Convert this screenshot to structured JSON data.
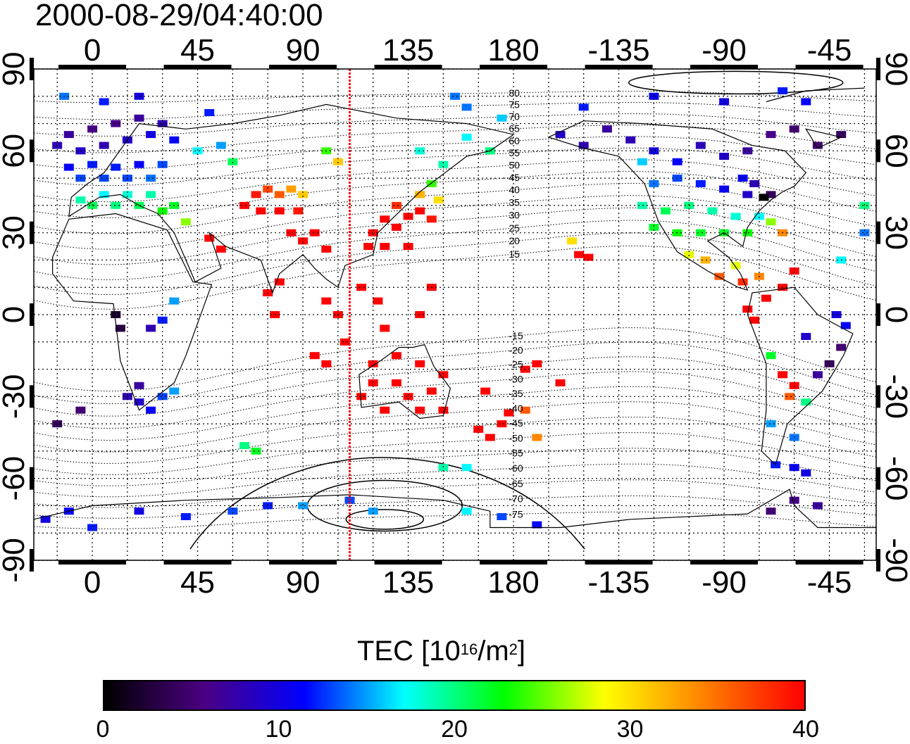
{
  "title": "2000-08-29/04:40:00",
  "map": {
    "top_lon_labels": [
      "0",
      "45",
      "90",
      "135",
      "180",
      "-135",
      "-90",
      "-45"
    ],
    "bottom_lon_labels": [
      "0",
      "45",
      "90",
      "135",
      "180",
      "-135",
      "-90",
      "-45"
    ],
    "left_lat_labels": [
      "90",
      "60",
      "30",
      "0",
      "-30",
      "-60",
      "-90"
    ],
    "right_lat_labels": [
      "90",
      "60",
      "30",
      "0",
      "-30",
      "-60",
      "-90"
    ],
    "lon_ticks": [
      0,
      45,
      90,
      135,
      180,
      -135,
      -90,
      -45
    ],
    "lat_ticks": [
      90,
      60,
      30,
      0,
      -30,
      -60,
      -90
    ],
    "lon_range": [
      -25,
      335
    ],
    "lat_range": [
      -90,
      90
    ],
    "meridian_marker_lon": 110,
    "marker_color": "#ff0000",
    "contour_labels": [
      "80",
      "75",
      "70",
      "65",
      "60",
      "55",
      "50",
      "45",
      "40",
      "35",
      "30",
      "25",
      "20",
      "15",
      "-15",
      "-20",
      "-25",
      "-30",
      "-35",
      "-40",
      "-45",
      "-50",
      "-55",
      "-60",
      "-65",
      "-70",
      "-75"
    ],
    "tec_cells": [
      {
        "lon": -15,
        "lat": 62,
        "tec": 8
      },
      {
        "lon": -10,
        "lat": 66,
        "tec": 7
      },
      {
        "lon": -5,
        "lat": 60,
        "tec": 9
      },
      {
        "lon": 0,
        "lat": 68,
        "tec": 6
      },
      {
        "lon": 5,
        "lat": 62,
        "tec": 8
      },
      {
        "lon": 10,
        "lat": 70,
        "tec": 6
      },
      {
        "lon": 15,
        "lat": 64,
        "tec": 9
      },
      {
        "lon": 20,
        "lat": 72,
        "tec": 7
      },
      {
        "lon": 25,
        "lat": 66,
        "tec": 10
      },
      {
        "lon": 30,
        "lat": 70,
        "tec": 8
      },
      {
        "lon": 35,
        "lat": 64,
        "tec": 11
      },
      {
        "lon": -10,
        "lat": 54,
        "tec": 11
      },
      {
        "lon": -5,
        "lat": 50,
        "tec": 13
      },
      {
        "lon": 0,
        "lat": 55,
        "tec": 12
      },
      {
        "lon": 5,
        "lat": 50,
        "tec": 13
      },
      {
        "lon": 10,
        "lat": 54,
        "tec": 12
      },
      {
        "lon": 15,
        "lat": 50,
        "tec": 13
      },
      {
        "lon": 20,
        "lat": 55,
        "tec": 11
      },
      {
        "lon": 25,
        "lat": 50,
        "tec": 14
      },
      {
        "lon": 30,
        "lat": 55,
        "tec": 13
      },
      {
        "lon": -5,
        "lat": 42,
        "tec": 19
      },
      {
        "lon": 0,
        "lat": 40,
        "tec": 21
      },
      {
        "lon": 5,
        "lat": 44,
        "tec": 17
      },
      {
        "lon": 10,
        "lat": 40,
        "tec": 20
      },
      {
        "lon": 15,
        "lat": 44,
        "tec": 18
      },
      {
        "lon": 20,
        "lat": 40,
        "tec": 21
      },
      {
        "lon": 25,
        "lat": 44,
        "tec": 19
      },
      {
        "lon": 30,
        "lat": 38,
        "tec": 23
      },
      {
        "lon": 35,
        "lat": 40,
        "tec": 22
      },
      {
        "lon": 40,
        "lat": 34,
        "tec": 26
      },
      {
        "lon": -12,
        "lat": 80,
        "tec": 14
      },
      {
        "lon": 5,
        "lat": 78,
        "tec": 12
      },
      {
        "lon": 20,
        "lat": 80,
        "tec": 10
      },
      {
        "lon": 45,
        "lat": 60,
        "tec": 17
      },
      {
        "lon": 55,
        "lat": 62,
        "tec": 15
      },
      {
        "lon": 60,
        "lat": 56,
        "tec": 21
      },
      {
        "lon": 50,
        "lat": 74,
        "tec": 12
      },
      {
        "lon": 100,
        "lat": 60,
        "tec": 24
      },
      {
        "lon": 105,
        "lat": 56,
        "tec": 31
      },
      {
        "lon": 70,
        "lat": 44,
        "tec": 39
      },
      {
        "lon": 75,
        "lat": 46,
        "tec": 37
      },
      {
        "lon": 80,
        "lat": 44,
        "tec": 36
      },
      {
        "lon": 85,
        "lat": 46,
        "tec": 33
      },
      {
        "lon": 90,
        "lat": 44,
        "tec": 31
      },
      {
        "lon": 65,
        "lat": 40,
        "tec": 40
      },
      {
        "lon": 72,
        "lat": 38,
        "tec": 40
      },
      {
        "lon": 80,
        "lat": 38,
        "tec": 40
      },
      {
        "lon": 88,
        "lat": 38,
        "tec": 39
      },
      {
        "lon": 85,
        "lat": 30,
        "tec": 40
      },
      {
        "lon": 90,
        "lat": 27,
        "tec": 40
      },
      {
        "lon": 95,
        "lat": 30,
        "tec": 40
      },
      {
        "lon": 100,
        "lat": 24,
        "tec": 40
      },
      {
        "lon": 50,
        "lat": 28,
        "tec": 40
      },
      {
        "lon": 55,
        "lat": 24,
        "tec": 40
      },
      {
        "lon": 75,
        "lat": 8,
        "tec": 40
      },
      {
        "lon": 80,
        "lat": 12,
        "tec": 40
      },
      {
        "lon": 78,
        "lat": 0,
        "tec": 40
      },
      {
        "lon": 95,
        "lat": -15,
        "tec": 40
      },
      {
        "lon": 100,
        "lat": -18,
        "tec": 40
      },
      {
        "lon": 100,
        "lat": 5,
        "tec": 40
      },
      {
        "lon": 105,
        "lat": 0,
        "tec": 40
      },
      {
        "lon": 108,
        "lat": -10,
        "tec": 40
      },
      {
        "lon": 120,
        "lat": 30,
        "tec": 40
      },
      {
        "lon": 125,
        "lat": 35,
        "tec": 40
      },
      {
        "lon": 130,
        "lat": 32,
        "tec": 40
      },
      {
        "lon": 135,
        "lat": 36,
        "tec": 40
      },
      {
        "lon": 140,
        "lat": 38,
        "tec": 40
      },
      {
        "lon": 145,
        "lat": 35,
        "tec": 39
      },
      {
        "lon": 130,
        "lat": 40,
        "tec": 38
      },
      {
        "lon": 140,
        "lat": 44,
        "tec": 32
      },
      {
        "lon": 145,
        "lat": 48,
        "tec": 24
      },
      {
        "lon": 148,
        "lat": 42,
        "tec": 30
      },
      {
        "lon": 118,
        "lat": 25,
        "tec": 40
      },
      {
        "lon": 125,
        "lat": 25,
        "tec": 40
      },
      {
        "lon": 135,
        "lat": 25,
        "tec": 40
      },
      {
        "lon": 115,
        "lat": 10,
        "tec": 40
      },
      {
        "lon": 122,
        "lat": 5,
        "tec": 40
      },
      {
        "lon": 125,
        "lat": -5,
        "tec": 40
      },
      {
        "lon": 140,
        "lat": 0,
        "tec": 40
      },
      {
        "lon": 145,
        "lat": 10,
        "tec": 40
      },
      {
        "lon": 140,
        "lat": 60,
        "tec": 18
      },
      {
        "lon": 150,
        "lat": 55,
        "tec": 19
      },
      {
        "lon": 160,
        "lat": 65,
        "tec": 17
      },
      {
        "lon": 170,
        "lat": 60,
        "tec": 20
      },
      {
        "lon": 155,
        "lat": 80,
        "tec": 14
      },
      {
        "lon": 175,
        "lat": 72,
        "tec": 16
      },
      {
        "lon": 160,
        "lat": 76,
        "tec": 14
      },
      {
        "lon": 120,
        "lat": -25,
        "tec": 40
      },
      {
        "lon": 115,
        "lat": -30,
        "tec": 40
      },
      {
        "lon": 125,
        "lat": -35,
        "tec": 40
      },
      {
        "lon": 130,
        "lat": -25,
        "tec": 40
      },
      {
        "lon": 135,
        "lat": -30,
        "tec": 40
      },
      {
        "lon": 140,
        "lat": -35,
        "tec": 40
      },
      {
        "lon": 145,
        "lat": -28,
        "tec": 40
      },
      {
        "lon": 150,
        "lat": -35,
        "tec": 40
      },
      {
        "lon": 150,
        "lat": -22,
        "tec": 40
      },
      {
        "lon": 140,
        "lat": -18,
        "tec": 40
      },
      {
        "lon": 120,
        "lat": -18,
        "tec": 40
      },
      {
        "lon": 130,
        "lat": -15,
        "tec": 40
      },
      {
        "lon": 165,
        "lat": -42,
        "tec": 40
      },
      {
        "lon": 170,
        "lat": -45,
        "tec": 40
      },
      {
        "lon": 175,
        "lat": -40,
        "tec": 40
      },
      {
        "lon": 178,
        "lat": -36,
        "tec": 40
      },
      {
        "lon": 168,
        "lat": -28,
        "tec": 40
      },
      {
        "lon": 185,
        "lat": -20,
        "tec": 40
      },
      {
        "lon": 190,
        "lat": -18,
        "tec": 40
      },
      {
        "lon": 200,
        "lat": -25,
        "tec": 40
      },
      {
        "lon": 185,
        "lat": -35,
        "tec": 36
      },
      {
        "lon": 190,
        "lat": -45,
        "tec": 34
      },
      {
        "lon": 205,
        "lat": 27,
        "tec": 30
      },
      {
        "lon": 208,
        "lat": 22,
        "tec": 40
      },
      {
        "lon": 212,
        "lat": 21,
        "tec": 40
      },
      {
        "lon": 10,
        "lat": 0,
        "tec": 2
      },
      {
        "lon": 12,
        "lat": -5,
        "tec": 3
      },
      {
        "lon": 25,
        "lat": -5,
        "tec": 8
      },
      {
        "lon": 30,
        "lat": -2,
        "tec": 12
      },
      {
        "lon": 35,
        "lat": 5,
        "tec": 15
      },
      {
        "lon": 20,
        "lat": -32,
        "tec": 9
      },
      {
        "lon": 25,
        "lat": -35,
        "tec": 11
      },
      {
        "lon": 30,
        "lat": -30,
        "tec": 13
      },
      {
        "lon": 35,
        "lat": -28,
        "tec": 15
      },
      {
        "lon": 20,
        "lat": -26,
        "tec": 7
      },
      {
        "lon": 15,
        "lat": -30,
        "tec": 8
      },
      {
        "lon": -5,
        "lat": -35,
        "tec": 5
      },
      {
        "lon": -15,
        "lat": -40,
        "tec": 4
      },
      {
        "lon": 65,
        "lat": -48,
        "tec": 20
      },
      {
        "lon": 70,
        "lat": -50,
        "tec": 22
      },
      {
        "lon": -20,
        "lat": -75,
        "tec": 10
      },
      {
        "lon": -10,
        "lat": -72,
        "tec": 11
      },
      {
        "lon": 0,
        "lat": -78,
        "tec": 12
      },
      {
        "lon": 20,
        "lat": -72,
        "tec": 10
      },
      {
        "lon": 40,
        "lat": -74,
        "tec": 12
      },
      {
        "lon": 60,
        "lat": -72,
        "tec": 13
      },
      {
        "lon": 75,
        "lat": -70,
        "tec": 12
      },
      {
        "lon": 90,
        "lat": -70,
        "tec": 15
      },
      {
        "lon": 110,
        "lat": -68,
        "tec": 13
      },
      {
        "lon": 120,
        "lat": -72,
        "tec": 15
      },
      {
        "lon": 160,
        "lat": -72,
        "tec": 17
      },
      {
        "lon": 175,
        "lat": -74,
        "tec": 13
      },
      {
        "lon": 190,
        "lat": -77,
        "tec": 11
      },
      {
        "lon": 160,
        "lat": -56,
        "tec": 17
      },
      {
        "lon": 150,
        "lat": -56,
        "tec": 19
      },
      {
        "lon": 200,
        "lat": 66,
        "tec": 9
      },
      {
        "lon": 210,
        "lat": 62,
        "tec": 8
      },
      {
        "lon": 220,
        "lat": 68,
        "tec": 7
      },
      {
        "lon": 230,
        "lat": 64,
        "tec": 8
      },
      {
        "lon": 240,
        "lat": 60,
        "tec": 10
      },
      {
        "lon": 250,
        "lat": 56,
        "tec": 11
      },
      {
        "lon": 260,
        "lat": 62,
        "tec": 8
      },
      {
        "lon": 270,
        "lat": 58,
        "tec": 9
      },
      {
        "lon": 280,
        "lat": 60,
        "tec": 7
      },
      {
        "lon": 290,
        "lat": 66,
        "tec": 6
      },
      {
        "lon": 300,
        "lat": 68,
        "tec": 5
      },
      {
        "lon": 310,
        "lat": 62,
        "tec": 5
      },
      {
        "lon": 320,
        "lat": 66,
        "tec": 4
      },
      {
        "lon": 240,
        "lat": 48,
        "tec": 14
      },
      {
        "lon": 250,
        "lat": 50,
        "tec": 13
      },
      {
        "lon": 260,
        "lat": 48,
        "tec": 12
      },
      {
        "lon": 270,
        "lat": 46,
        "tec": 11
      },
      {
        "lon": 280,
        "lat": 44,
        "tec": 9
      },
      {
        "lon": 290,
        "lat": 44,
        "tec": 4
      },
      {
        "lon": 235,
        "lat": 40,
        "tec": 19
      },
      {
        "lon": 245,
        "lat": 38,
        "tec": 21
      },
      {
        "lon": 255,
        "lat": 40,
        "tec": 20
      },
      {
        "lon": 265,
        "lat": 38,
        "tec": 19
      },
      {
        "lon": 275,
        "lat": 36,
        "tec": 18
      },
      {
        "lon": 285,
        "lat": 36,
        "tec": 17
      },
      {
        "lon": 240,
        "lat": 32,
        "tec": 22
      },
      {
        "lon": 250,
        "lat": 30,
        "tec": 23
      },
      {
        "lon": 260,
        "lat": 30,
        "tec": 22
      },
      {
        "lon": 270,
        "lat": 30,
        "tec": 22
      },
      {
        "lon": 280,
        "lat": 30,
        "tec": 23
      },
      {
        "lon": 290,
        "lat": 34,
        "tec": 26
      },
      {
        "lon": 295,
        "lat": 30,
        "tec": 34
      },
      {
        "lon": 255,
        "lat": 22,
        "tec": 28
      },
      {
        "lon": 262,
        "lat": 20,
        "tec": 32
      },
      {
        "lon": 275,
        "lat": 18,
        "tec": 28
      },
      {
        "lon": 268,
        "lat": 14,
        "tec": 36
      },
      {
        "lon": 278,
        "lat": 12,
        "tec": 38
      },
      {
        "lon": 285,
        "lat": 14,
        "tec": 34
      },
      {
        "lon": 288,
        "lat": 6,
        "tec": 40
      },
      {
        "lon": 295,
        "lat": 10,
        "tec": 40
      },
      {
        "lon": 300,
        "lat": 16,
        "tec": 40
      },
      {
        "lon": 280,
        "lat": 2,
        "tec": 40
      },
      {
        "lon": 283,
        "lat": -2,
        "tec": 40
      },
      {
        "lon": 290,
        "lat": -15,
        "tec": 22
      },
      {
        "lon": 295,
        "lat": -22,
        "tec": 40
      },
      {
        "lon": 300,
        "lat": -26,
        "tec": 40
      },
      {
        "lon": 298,
        "lat": -30,
        "tec": 36
      },
      {
        "lon": 305,
        "lat": -32,
        "tec": 20
      },
      {
        "lon": 310,
        "lat": -22,
        "tec": 7
      },
      {
        "lon": 315,
        "lat": -18,
        "tec": 4
      },
      {
        "lon": 320,
        "lat": -12,
        "tec": 5
      },
      {
        "lon": 322,
        "lat": -4,
        "tec": 11
      },
      {
        "lon": 318,
        "lat": 0,
        "tec": 10
      },
      {
        "lon": 305,
        "lat": -8,
        "tec": 9
      },
      {
        "lon": 290,
        "lat": -40,
        "tec": 15
      },
      {
        "lon": 300,
        "lat": -45,
        "tec": 14
      },
      {
        "lon": 292,
        "lat": -55,
        "tec": 12
      },
      {
        "lon": 300,
        "lat": -56,
        "tec": 11
      },
      {
        "lon": 305,
        "lat": -58,
        "tec": 10
      },
      {
        "lon": 290,
        "lat": -72,
        "tec": 5
      },
      {
        "lon": 300,
        "lat": -68,
        "tec": 6
      },
      {
        "lon": 310,
        "lat": -70,
        "tec": 7
      },
      {
        "lon": 320,
        "lat": 20,
        "tec": 17
      },
      {
        "lon": 330,
        "lat": 40,
        "tec": 20
      },
      {
        "lon": 330,
        "lat": 30,
        "tec": 14
      },
      {
        "lon": 210,
        "lat": 76,
        "tec": 12
      },
      {
        "lon": 240,
        "lat": 80,
        "tec": 11
      },
      {
        "lon": 270,
        "lat": 78,
        "tec": 10
      },
      {
        "lon": 295,
        "lat": 82,
        "tec": 12
      },
      {
        "lon": 305,
        "lat": 78,
        "tec": 11
      },
      {
        "lon": 235,
        "lat": 56,
        "tec": 16
      },
      {
        "lon": 278,
        "lat": 50,
        "tec": 11
      },
      {
        "lon": 283,
        "lat": 48,
        "tec": 8
      },
      {
        "lon": 287,
        "lat": 43,
        "tec": 0
      }
    ]
  },
  "colorbar": {
    "title_main": "TEC  [10",
    "title_exp1": "16",
    "title_mid": "/m",
    "title_exp2": "2",
    "title_end": "]",
    "min": 0,
    "max": 40,
    "ticks": [
      "0",
      "10",
      "20",
      "30",
      "40"
    ],
    "tick_values": [
      0,
      10,
      20,
      30,
      40
    ],
    "colors": [
      "#000000",
      "#4b0082",
      "#0000ff",
      "#00ffff",
      "#00ff00",
      "#ffff00",
      "#ff8000",
      "#ff0000"
    ]
  }
}
